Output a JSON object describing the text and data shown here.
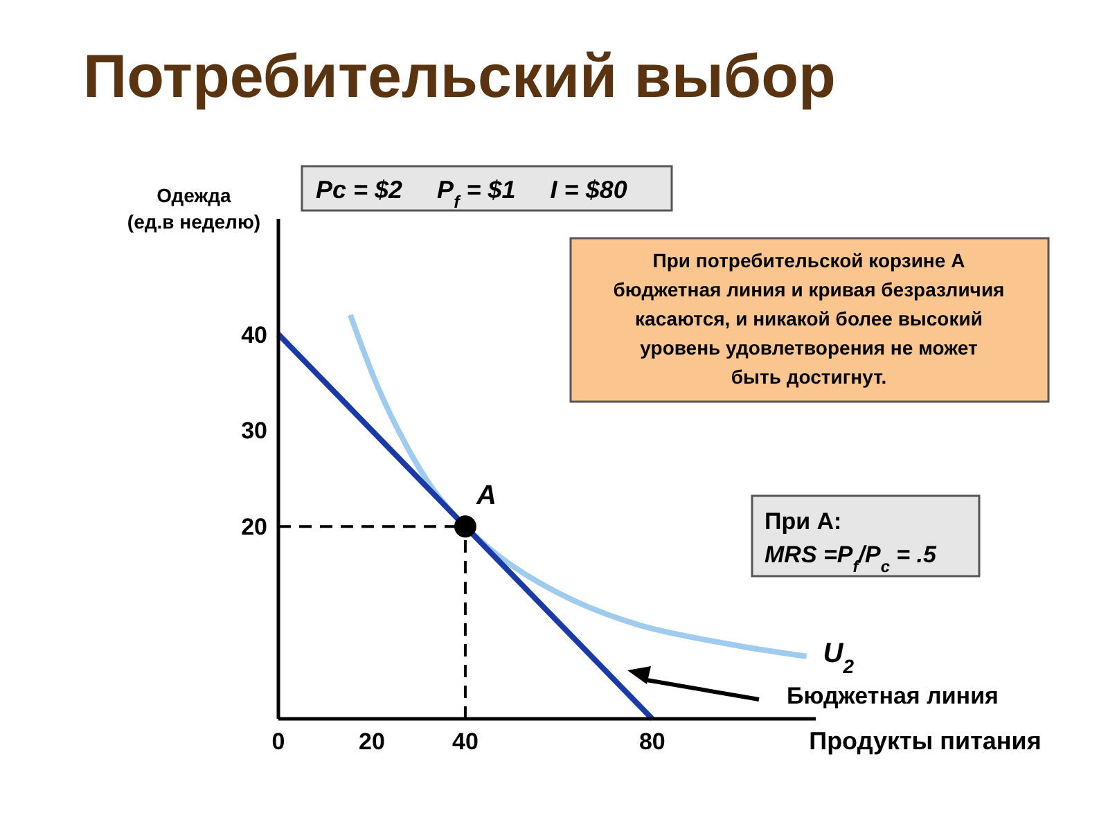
{
  "chart_data": {
    "type": "line",
    "title": "Потребительский выбор",
    "xlabel": "Продукты питания",
    "ylabel": "Одежда\n(ед.в неделю)",
    "xlim": [
      0,
      115
    ],
    "ylim": [
      0,
      52
    ],
    "xticks": [
      0,
      20,
      40,
      80
    ],
    "yticks": [
      20,
      30,
      40
    ],
    "series": [
      {
        "type": "line",
        "color": "#000000",
        "line_style": "dashed",
        "x": [
          0,
          40
        ],
        "values": [
          20,
          20
        ]
      },
      {
        "type": "line",
        "color": "#000000",
        "line_style": "dashed",
        "x": [
          40,
          40
        ],
        "values": [
          0,
          20
        ]
      },
      {
        "type": "line",
        "name": "U$_{2}$",
        "color": "#9ecbee",
        "x": [
          15.4,
          21.3,
          27.3,
          33.2,
          40,
          49.2,
          62.8,
          77.6,
          98.4,
          113
        ],
        "values": [
          42,
          34.5,
          28.5,
          23.8,
          20,
          16.2,
          12.4,
          9.7,
          7.6,
          6.5
        ]
      },
      {
        "type": "line",
        "color": "#1a3aa8",
        "x": [
          0,
          80
        ],
        "values": [
          40,
          0
        ]
      },
      {
        "type": "scatter",
        "color": "#000000",
        "marker": "circle",
        "x": [
          40
        ],
        "values": [
          20
        ]
      }
    ],
    "annotations": [
      "Pc = $2     P$_{f}$ = $1     I = $80",
      "При потребительской корзине A\nбюджетная линия и кривая безразличия\nкасаются, и никакой более высокий\nуровень удовлетворения не может\nбыть достигнут.",
      "При A:\nMRS =P$_{f}$/P$_{c}$ = .5",
      {
        "text": "A",
        "x": 40,
        "y": 20
      },
      "Бюджетная линия"
    ]
  }
}
